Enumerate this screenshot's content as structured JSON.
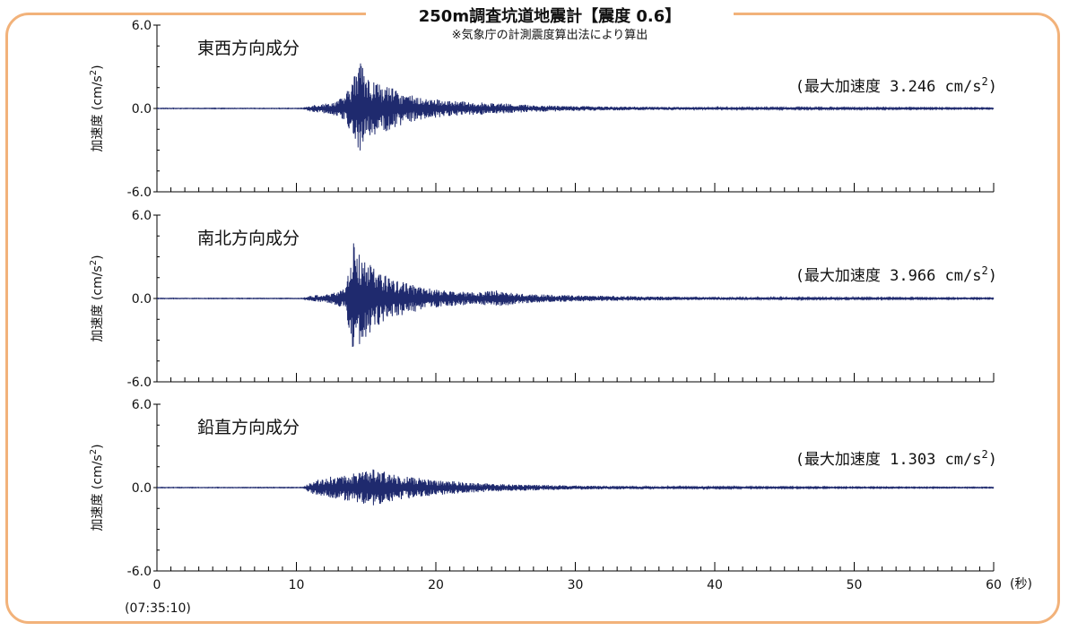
{
  "header": {
    "title": "250m調査坑道地震計【震度 0.6】",
    "subtitle": "※気象庁の計測震度算出法により算出"
  },
  "colors": {
    "frame": "#f2b27a",
    "trace": "#1f2a6e",
    "axis": "#000000"
  },
  "chart_data": [
    {
      "type": "line",
      "title": "東西方向成分",
      "ylabel_main": "加速度",
      "ylabel_unit_base": "(cm/s",
      "ylabel_unit_exp": "2",
      "ylabel_unit_close": ")",
      "ylim": [
        -6.0,
        6.0
      ],
      "y_ticks": [
        "6.0",
        "0.0",
        "-6.0"
      ],
      "xlim": [
        0,
        60
      ],
      "max_label_base": "(最大加速度 3.246 cm/s",
      "max_label_exp": "2",
      "max_label_close": ")",
      "max_value": 3.246,
      "envelope": [
        [
          0,
          0.02
        ],
        [
          10.5,
          0.02
        ],
        [
          11,
          0.25
        ],
        [
          12.5,
          0.4
        ],
        [
          13.5,
          0.9
        ],
        [
          14.2,
          2.6
        ],
        [
          14.6,
          3.246
        ],
        [
          15.2,
          2.2
        ],
        [
          16,
          1.8
        ],
        [
          17,
          1.4
        ],
        [
          18,
          1.0
        ],
        [
          19,
          0.8
        ],
        [
          21,
          0.55
        ],
        [
          23,
          0.45
        ],
        [
          25,
          0.35
        ],
        [
          27,
          0.25
        ],
        [
          30,
          0.18
        ],
        [
          35,
          0.12
        ],
        [
          40,
          0.08
        ],
        [
          50,
          0.06
        ],
        [
          60,
          0.04
        ]
      ]
    },
    {
      "type": "line",
      "title": "南北方向成分",
      "ylabel_main": "加速度",
      "ylabel_unit_base": "(cm/s",
      "ylabel_unit_exp": "2",
      "ylabel_unit_close": ")",
      "ylim": [
        -6.0,
        6.0
      ],
      "y_ticks": [
        "6.0",
        "0.0",
        "-6.0"
      ],
      "xlim": [
        0,
        60
      ],
      "max_label_base": "(最大加速度 3.966 cm/s",
      "max_label_exp": "2",
      "max_label_close": ")",
      "max_value": 3.966,
      "envelope": [
        [
          0,
          0.02
        ],
        [
          10.5,
          0.02
        ],
        [
          11,
          0.2
        ],
        [
          12.5,
          0.35
        ],
        [
          13.5,
          0.8
        ],
        [
          14.1,
          3.966
        ],
        [
          14.5,
          3.5
        ],
        [
          15,
          2.8
        ],
        [
          15.8,
          2.0
        ],
        [
          17,
          1.4
        ],
        [
          18,
          1.1
        ],
        [
          19,
          0.8
        ],
        [
          21,
          0.55
        ],
        [
          23,
          0.45
        ],
        [
          24.5,
          0.6
        ],
        [
          26,
          0.35
        ],
        [
          30,
          0.22
        ],
        [
          35,
          0.15
        ],
        [
          40,
          0.1
        ],
        [
          50,
          0.06
        ],
        [
          60,
          0.04
        ]
      ]
    },
    {
      "type": "line",
      "title": "鉛直方向成分",
      "ylabel_main": "加速度",
      "ylabel_unit_base": "(cm/s",
      "ylabel_unit_exp": "2",
      "ylabel_unit_close": ")",
      "ylim": [
        -6.0,
        6.0
      ],
      "y_ticks": [
        "6.0",
        "0.0",
        "-6.0"
      ],
      "xlim": [
        0,
        60
      ],
      "max_label_base": "(最大加速度 1.303 cm/s",
      "max_label_exp": "2",
      "max_label_close": ")",
      "max_value": 1.303,
      "envelope": [
        [
          0,
          0.02
        ],
        [
          10.5,
          0.02
        ],
        [
          11,
          0.45
        ],
        [
          12.5,
          0.8
        ],
        [
          14,
          1.0
        ],
        [
          15.5,
          1.303
        ],
        [
          16.5,
          1.1
        ],
        [
          18,
          0.8
        ],
        [
          20,
          0.55
        ],
        [
          22,
          0.4
        ],
        [
          25,
          0.25
        ],
        [
          30,
          0.15
        ],
        [
          35,
          0.1
        ],
        [
          40,
          0.06
        ],
        [
          50,
          0.04
        ],
        [
          60,
          0.03
        ]
      ]
    }
  ],
  "x_axis": {
    "ticks": [
      "0",
      "10",
      "20",
      "30",
      "40",
      "50",
      "60"
    ],
    "unit": "(秒)",
    "start_time": "(07:35:10)"
  }
}
